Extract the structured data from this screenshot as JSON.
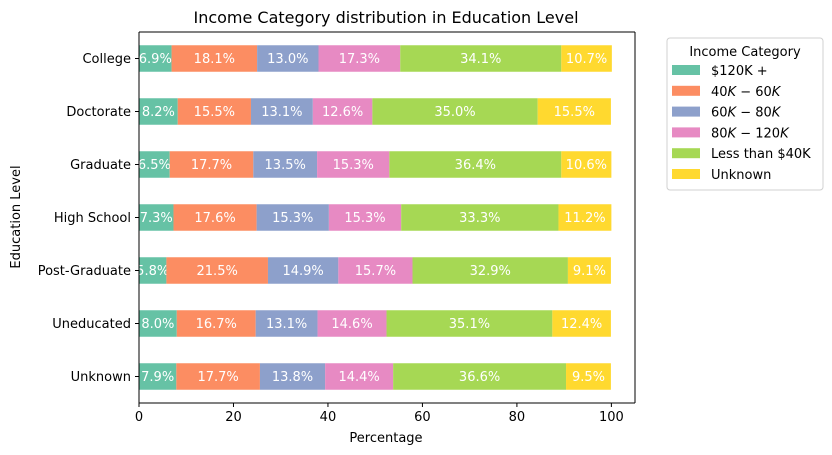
{
  "chart_data": {
    "type": "bar",
    "orientation": "horizontal",
    "stacked": true,
    "title": "Income Category distribution in Education Level",
    "xlabel": "Percentage",
    "ylabel": "Education Level",
    "xlim": [
      0,
      105
    ],
    "xticks": [
      0,
      20,
      40,
      60,
      80,
      100
    ],
    "grid": false,
    "legend_title": "Income Category",
    "legend_position": "outside-right",
    "categories": [
      "College",
      "Doctorate",
      "Graduate",
      "High School",
      "Post-Graduate",
      "Uneducated",
      "Unknown"
    ],
    "series": [
      {
        "legend_parts": [
          {
            "t": "$120K +",
            "i": false
          }
        ],
        "color": "#66c2a5",
        "values": [
          6.9,
          8.2,
          6.5,
          7.3,
          5.8,
          8.0,
          7.9
        ],
        "labels": [
          "6.9%",
          "8.2%",
          "6.5%",
          "7.3%",
          "5.8%",
          "8.0%",
          "7.9%"
        ]
      },
      {
        "legend_parts": [
          {
            "t": "40",
            "i": false
          },
          {
            "t": "K",
            "i": true
          },
          {
            "t": " − 60",
            "i": false
          },
          {
            "t": "K",
            "i": true
          }
        ],
        "color": "#fc8d62",
        "values": [
          18.1,
          15.5,
          17.7,
          17.6,
          21.5,
          16.7,
          17.7
        ],
        "labels": [
          "18.1%",
          "15.5%",
          "17.7%",
          "17.6%",
          "21.5%",
          "16.7%",
          "17.7%"
        ]
      },
      {
        "legend_parts": [
          {
            "t": "60",
            "i": false
          },
          {
            "t": "K",
            "i": true
          },
          {
            "t": " − 80",
            "i": false
          },
          {
            "t": "K",
            "i": true
          }
        ],
        "color": "#8da0cb",
        "values": [
          13.0,
          13.1,
          13.5,
          15.3,
          14.9,
          13.1,
          13.8
        ],
        "labels": [
          "13.0%",
          "13.1%",
          "13.5%",
          "15.3%",
          "14.9%",
          "13.1%",
          "13.8%"
        ]
      },
      {
        "legend_parts": [
          {
            "t": "80",
            "i": false
          },
          {
            "t": "K",
            "i": true
          },
          {
            "t": " − 120",
            "i": false
          },
          {
            "t": "K",
            "i": true
          }
        ],
        "color": "#e78ac3",
        "values": [
          17.3,
          12.6,
          15.3,
          15.3,
          15.7,
          14.6,
          14.4
        ],
        "labels": [
          "17.3%",
          "12.6%",
          "15.3%",
          "15.3%",
          "15.7%",
          "14.6%",
          "14.4%"
        ]
      },
      {
        "legend_parts": [
          {
            "t": "Less than $40K",
            "i": false
          }
        ],
        "color": "#a6d854",
        "values": [
          34.1,
          35.0,
          36.4,
          33.3,
          32.9,
          35.1,
          36.6
        ],
        "labels": [
          "34.1%",
          "35.0%",
          "36.4%",
          "33.3%",
          "32.9%",
          "35.1%",
          "36.6%"
        ]
      },
      {
        "legend_parts": [
          {
            "t": "Unknown",
            "i": false
          }
        ],
        "color": "#ffd92f",
        "values": [
          10.7,
          15.5,
          10.6,
          11.2,
          9.1,
          12.4,
          9.5
        ],
        "labels": [
          "10.7%",
          "15.5%",
          "10.6%",
          "11.2%",
          "9.1%",
          "12.4%",
          "9.5%"
        ]
      }
    ]
  }
}
